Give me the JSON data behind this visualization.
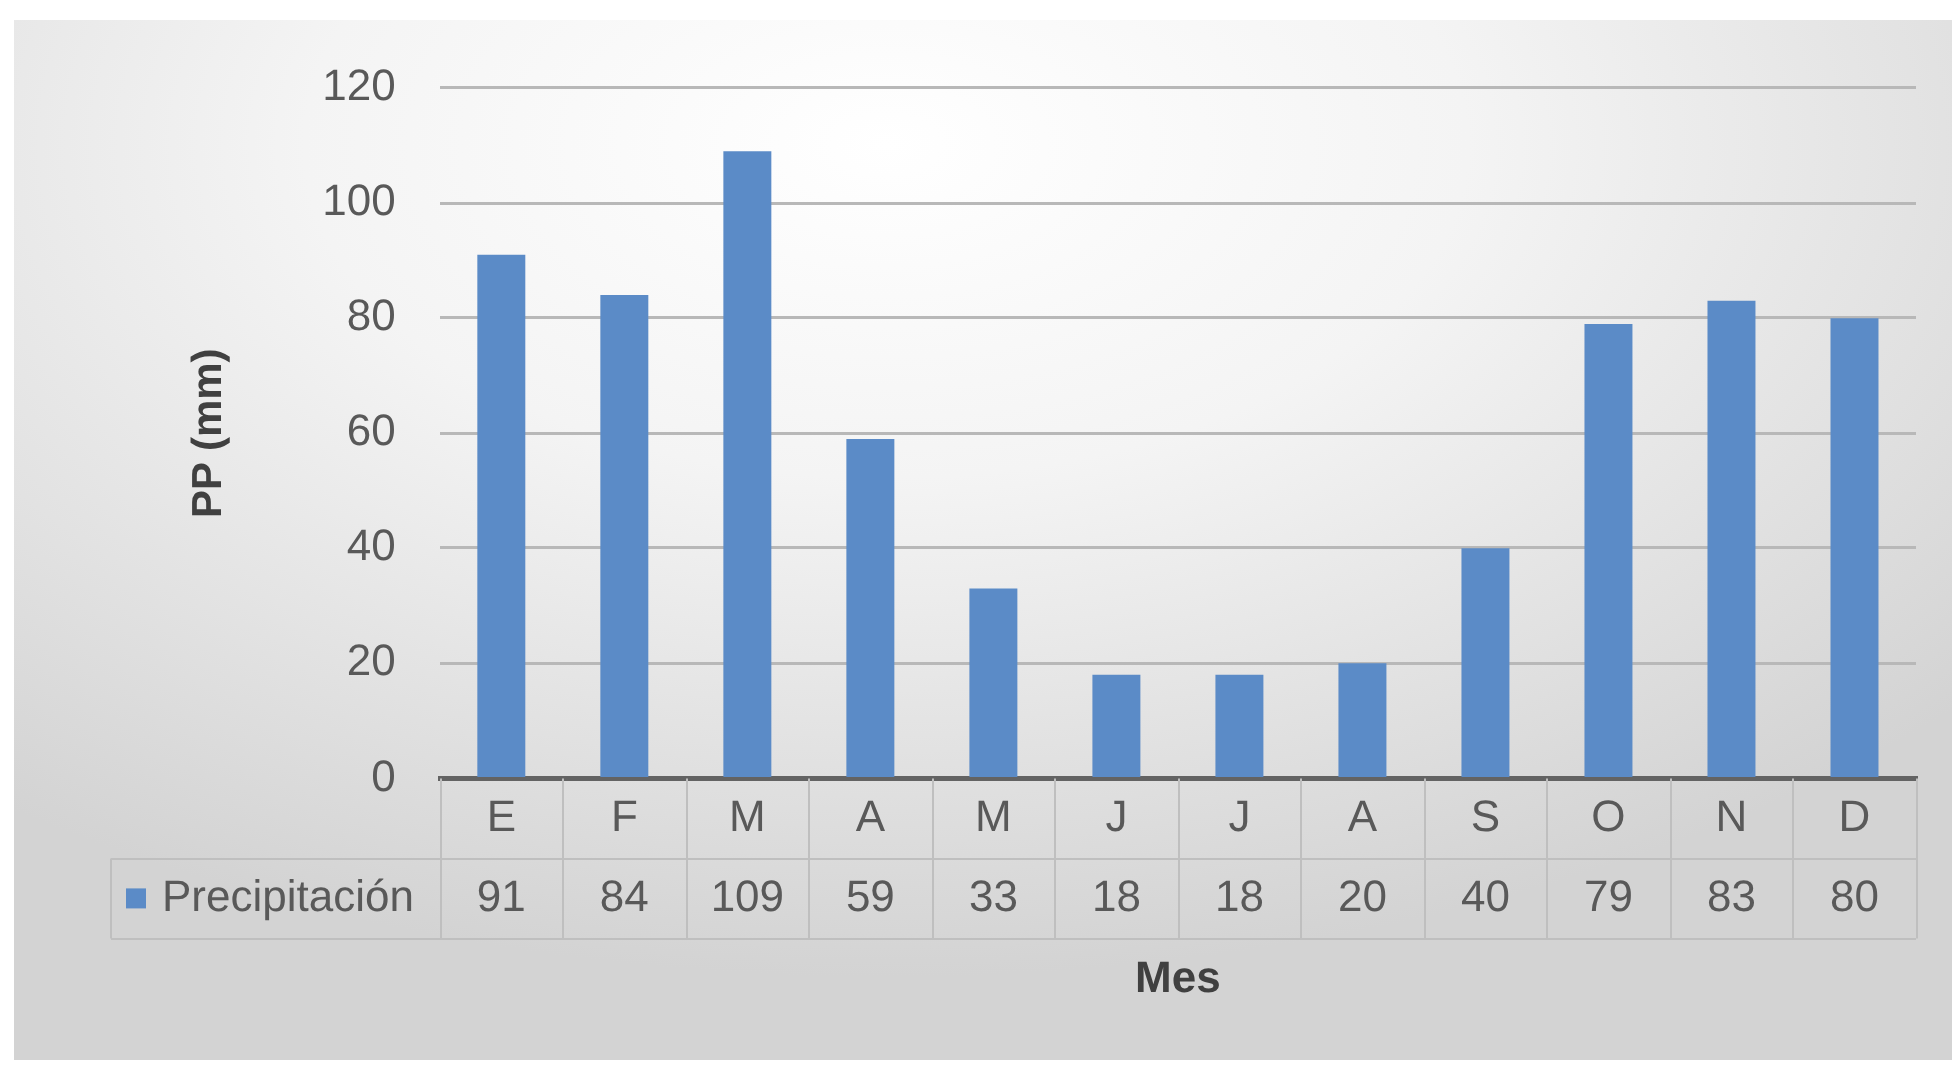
{
  "chart_data": {
    "type": "bar",
    "xlabel": "Mes",
    "ylabel": "PP (mm)",
    "categories": [
      "E",
      "F",
      "M",
      "A",
      "M",
      "J",
      "J",
      "A",
      "S",
      "O",
      "N",
      "D"
    ],
    "series": [
      {
        "name": "Precipitación",
        "color": "#5b8bc7",
        "values": [
          91,
          84,
          109,
          59,
          33,
          18,
          18,
          20,
          40,
          79,
          83,
          80
        ]
      }
    ],
    "ylim": [
      0,
      120
    ],
    "yticks": [
      0,
      20,
      40,
      60,
      80,
      100,
      120
    ],
    "grid": "y",
    "legend": "bottom left",
    "data_labels": true
  }
}
